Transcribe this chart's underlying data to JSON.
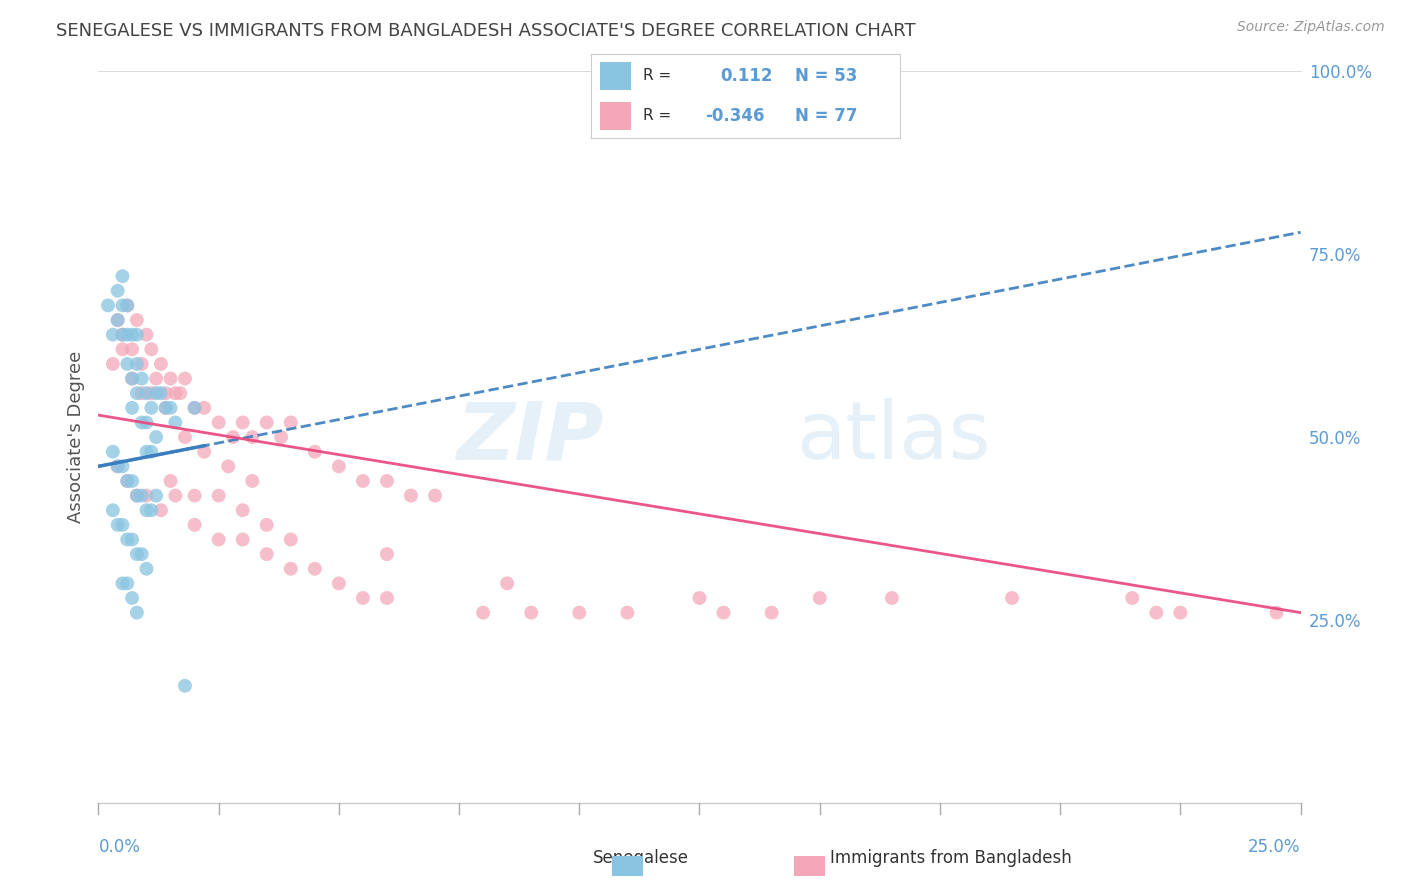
{
  "title": "SENEGALESE VS IMMIGRANTS FROM BANGLADESH ASSOCIATE'S DEGREE CORRELATION CHART",
  "source": "Source: ZipAtlas.com",
  "ylabel": "Associate's Degree",
  "xlim": [
    0.0,
    25.0
  ],
  "ylim": [
    0.0,
    100.0
  ],
  "xticks": [
    0,
    2.5,
    5,
    7.5,
    10,
    12.5,
    15,
    17.5,
    20,
    22.5,
    25
  ],
  "ytick_vals": [
    0,
    25,
    50,
    75,
    100
  ],
  "ytick_labels": [
    "",
    "25.0%",
    "50.0%",
    "75.0%",
    "100.0%"
  ],
  "blue_color": "#89c4e1",
  "pink_color": "#f4a7b9",
  "blue_line_color": "#3a7ebf",
  "pink_line_color": "#e8457a",
  "blue_scatter_x": [
    0.2,
    0.3,
    0.4,
    0.4,
    0.5,
    0.5,
    0.5,
    0.6,
    0.6,
    0.6,
    0.7,
    0.7,
    0.7,
    0.8,
    0.8,
    0.8,
    0.9,
    0.9,
    1.0,
    1.0,
    1.0,
    1.1,
    1.1,
    1.2,
    1.2,
    1.3,
    1.4,
    1.5,
    1.6,
    2.0,
    0.3,
    0.4,
    0.5,
    0.6,
    0.7,
    0.8,
    0.9,
    1.0,
    1.1,
    1.2,
    0.3,
    0.4,
    0.5,
    0.6,
    0.7,
    0.8,
    0.9,
    1.0,
    0.5,
    0.6,
    0.7,
    0.8,
    1.8
  ],
  "blue_scatter_y": [
    68,
    64,
    70,
    66,
    72,
    68,
    64,
    68,
    64,
    60,
    64,
    58,
    54,
    64,
    60,
    56,
    58,
    52,
    56,
    52,
    48,
    54,
    48,
    56,
    50,
    56,
    54,
    54,
    52,
    54,
    48,
    46,
    46,
    44,
    44,
    42,
    42,
    40,
    40,
    42,
    40,
    38,
    38,
    36,
    36,
    34,
    34,
    32,
    30,
    30,
    28,
    26,
    16
  ],
  "pink_scatter_x": [
    0.4,
    0.5,
    0.6,
    0.7,
    0.8,
    0.9,
    1.0,
    1.1,
    1.2,
    1.3,
    1.4,
    1.5,
    1.6,
    1.7,
    1.8,
    2.0,
    2.2,
    2.5,
    2.8,
    3.0,
    3.2,
    3.5,
    3.8,
    4.0,
    4.5,
    5.0,
    5.5,
    6.0,
    6.5,
    7.0,
    0.3,
    0.5,
    0.7,
    0.9,
    1.1,
    1.4,
    1.8,
    2.2,
    2.7,
    3.2,
    0.4,
    0.6,
    0.8,
    1.0,
    1.3,
    1.6,
    2.0,
    2.5,
    3.0,
    3.5,
    4.0,
    4.5,
    5.0,
    5.5,
    6.0,
    8.0,
    9.0,
    10.0,
    11.0,
    13.0,
    14.0,
    15.0,
    16.5,
    19.0,
    21.5,
    22.5,
    24.5,
    1.5,
    2.0,
    2.5,
    3.0,
    3.5,
    4.0,
    6.0,
    8.5,
    12.5,
    22.0
  ],
  "pink_scatter_y": [
    66,
    64,
    68,
    62,
    66,
    60,
    64,
    62,
    58,
    60,
    56,
    58,
    56,
    56,
    58,
    54,
    54,
    52,
    50,
    52,
    50,
    52,
    50,
    52,
    48,
    46,
    44,
    44,
    42,
    42,
    60,
    62,
    58,
    56,
    56,
    54,
    50,
    48,
    46,
    44,
    46,
    44,
    42,
    42,
    40,
    42,
    38,
    36,
    36,
    34,
    32,
    32,
    30,
    28,
    28,
    26,
    26,
    26,
    26,
    26,
    26,
    28,
    28,
    28,
    28,
    26,
    26,
    44,
    42,
    42,
    40,
    38,
    36,
    34,
    30,
    28,
    26
  ],
  "blue_line_x0": 0.0,
  "blue_line_x1": 25.0,
  "blue_line_y0": 46.0,
  "blue_line_y1": 78.0,
  "pink_line_x0": 0.0,
  "pink_line_x1": 25.0,
  "pink_line_y0": 53.0,
  "pink_line_y1": 26.0,
  "blue_solid_x0": 0.0,
  "blue_solid_x1": 2.2,
  "pink_solid_x0": 0.0,
  "pink_solid_x1": 4.0,
  "watermark_zip": "ZIP",
  "watermark_atlas": "atlas",
  "background_color": "#ffffff",
  "grid_color": "#d0d0d0",
  "title_color": "#444444",
  "axis_label_color": "#5b9bd5"
}
